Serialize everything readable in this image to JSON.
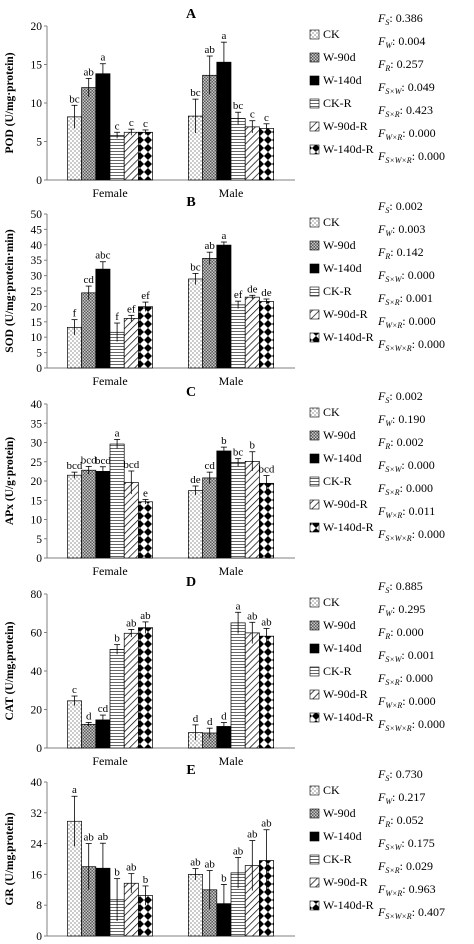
{
  "series_names": [
    "CK",
    "W-90d",
    "W-140d",
    "CK-R",
    "W-90d-R",
    "W-140d-R"
  ],
  "groups": [
    "Female",
    "Male"
  ],
  "patterns": [
    "dots",
    "checker",
    "black",
    "hstripe",
    "diag",
    "diamond"
  ],
  "colors": {
    "bar_edge": "#000000",
    "axis": "#808080",
    "text": "#000000"
  },
  "chart_data": [
    {
      "type": "bar",
      "title": "A",
      "ylabel": "POD (U/mg·protein)",
      "ylim": [
        0,
        20
      ],
      "yticks": [
        0,
        5,
        10,
        15,
        20
      ],
      "categories": [
        "Female",
        "Male"
      ],
      "series": [
        {
          "name": "CK",
          "values": [
            8.2,
            8.3
          ],
          "errors": [
            1.5,
            2.2
          ],
          "letters": [
            "bc",
            "bc"
          ]
        },
        {
          "name": "W-90d",
          "values": [
            12.0,
            13.6
          ],
          "errors": [
            1.2,
            2.5
          ],
          "letters": [
            "ab",
            "ab"
          ]
        },
        {
          "name": "W-140d",
          "values": [
            13.8,
            15.3
          ],
          "errors": [
            1.3,
            2.6
          ],
          "letters": [
            "a",
            "a"
          ]
        },
        {
          "name": "CK-R",
          "values": [
            5.8,
            8.0
          ],
          "errors": [
            0.4,
            0.8
          ],
          "letters": [
            "c",
            "bc"
          ]
        },
        {
          "name": "W-90d-R",
          "values": [
            6.2,
            6.9
          ],
          "errors": [
            0.4,
            0.8
          ],
          "letters": [
            "c",
            "c"
          ]
        },
        {
          "name": "W-140d-R",
          "values": [
            6.2,
            6.7
          ],
          "errors": [
            0.3,
            0.6
          ],
          "letters": [
            "c",
            "c"
          ]
        }
      ],
      "stats": [
        {
          "label": "S",
          "value": "0.386"
        },
        {
          "label": "W",
          "value": "0.004"
        },
        {
          "label": "R",
          "value": "0.257"
        },
        {
          "label": "S×W",
          "value": "0.049"
        },
        {
          "label": "S×R",
          "value": "0.423"
        },
        {
          "label": "W×R",
          "value": "0.000"
        },
        {
          "label": "S×W×R",
          "value": "0.000"
        }
      ]
    },
    {
      "type": "bar",
      "title": "B",
      "ylabel": "SOD (U/mg·protein·min)",
      "ylim": [
        0,
        50
      ],
      "yticks": [
        0,
        5,
        10,
        15,
        20,
        25,
        30,
        35,
        40,
        45,
        50
      ],
      "categories": [
        "Female",
        "Male"
      ],
      "series": [
        {
          "name": "CK",
          "values": [
            13.2,
            28.9
          ],
          "errors": [
            2.5,
            1.8
          ],
          "letters": [
            "f",
            "bc"
          ]
        },
        {
          "name": "W-90d",
          "values": [
            24.4,
            35.6
          ],
          "errors": [
            2.2,
            2.0
          ],
          "letters": [
            "cd",
            "ab"
          ]
        },
        {
          "name": "W-140d",
          "values": [
            32.1,
            39.9
          ],
          "errors": [
            2.4,
            1.0
          ],
          "letters": [
            "abc",
            "a"
          ]
        },
        {
          "name": "CK-R",
          "values": [
            11.6,
            20.5
          ],
          "errors": [
            3.0,
            1.2
          ],
          "letters": [
            "f",
            "ef"
          ]
        },
        {
          "name": "W-90d-R",
          "values": [
            16.1,
            23.0
          ],
          "errors": [
            1.0,
            0.6
          ],
          "letters": [
            "ef",
            "de"
          ]
        },
        {
          "name": "W-140d-R",
          "values": [
            19.9,
            21.6
          ],
          "errors": [
            1.5,
            0.8
          ],
          "letters": [
            "ef",
            "de"
          ]
        }
      ],
      "stats": [
        {
          "label": "S",
          "value": "0.002"
        },
        {
          "label": "W",
          "value": "0.003"
        },
        {
          "label": "R",
          "value": "0.142"
        },
        {
          "label": "S×W",
          "value": "0.000"
        },
        {
          "label": "S×R",
          "value": "0.001"
        },
        {
          "label": "W×R",
          "value": "0.000"
        },
        {
          "label": "S×W×R",
          "value": "0.000"
        }
      ]
    },
    {
      "type": "bar",
      "title": "C",
      "ylabel": "APx (U/g·protein)",
      "ylim": [
        0,
        40
      ],
      "yticks": [
        0,
        5,
        10,
        15,
        20,
        25,
        30,
        35,
        40
      ],
      "categories": [
        "Female",
        "Male"
      ],
      "series": [
        {
          "name": "CK",
          "values": [
            21.5,
            17.5
          ],
          "errors": [
            0.8,
            1.2
          ],
          "letters": [
            "bcd",
            "de"
          ]
        },
        {
          "name": "W-90d",
          "values": [
            22.8,
            20.8
          ],
          "errors": [
            1.0,
            1.5
          ],
          "letters": [
            "bcd",
            "cd"
          ]
        },
        {
          "name": "W-140d",
          "values": [
            22.5,
            27.8
          ],
          "errors": [
            1.2,
            1.0
          ],
          "letters": [
            "bcd",
            "b"
          ]
        },
        {
          "name": "CK-R",
          "values": [
            29.6,
            24.8
          ],
          "errors": [
            1.2,
            1.0
          ],
          "letters": [
            "a",
            "bc"
          ]
        },
        {
          "name": "W-90d-R",
          "values": [
            19.6,
            25.1
          ],
          "errors": [
            3.0,
            2.5
          ],
          "letters": [
            "bcd",
            "b"
          ]
        },
        {
          "name": "W-140d-R",
          "values": [
            14.6,
            19.4
          ],
          "errors": [
            0.6,
            2.0
          ],
          "letters": [
            "e",
            "bcd"
          ]
        }
      ],
      "stats": [
        {
          "label": "S",
          "value": "0.002"
        },
        {
          "label": "W",
          "value": "0.190"
        },
        {
          "label": "R",
          "value": "0.002"
        },
        {
          "label": "S×W",
          "value": "0.000"
        },
        {
          "label": "S×R",
          "value": "0.000"
        },
        {
          "label": "W×R",
          "value": "0.011"
        },
        {
          "label": "S×W×R",
          "value": "0.000"
        }
      ]
    },
    {
      "type": "bar",
      "title": "D",
      "ylabel": "CAT (U/mg.protein)",
      "ylim": [
        0,
        80
      ],
      "yticks": [
        0,
        20,
        40,
        60,
        80
      ],
      "categories": [
        "Female",
        "Male"
      ],
      "series": [
        {
          "name": "CK",
          "values": [
            24.5,
            8.0
          ],
          "errors": [
            2.5,
            4.0
          ],
          "letters": [
            "c",
            "d"
          ]
        },
        {
          "name": "W-90d",
          "values": [
            12.3,
            7.8
          ],
          "errors": [
            1.0,
            2.5
          ],
          "letters": [
            "d",
            "d"
          ]
        },
        {
          "name": "W-140d",
          "values": [
            14.6,
            11.2
          ],
          "errors": [
            2.5,
            2.0
          ],
          "letters": [
            "cd",
            "d"
          ]
        },
        {
          "name": "CK-R",
          "values": [
            51.2,
            65.0
          ],
          "errors": [
            2.5,
            5.5
          ],
          "letters": [
            "b",
            "a"
          ]
        },
        {
          "name": "W-90d-R",
          "values": [
            59.6,
            59.8
          ],
          "errors": [
            2.0,
            5.5
          ],
          "letters": [
            "ab",
            "ab"
          ]
        },
        {
          "name": "W-140d-R",
          "values": [
            62.5,
            58.1
          ],
          "errors": [
            3.0,
            4.0
          ],
          "letters": [
            "ab",
            "ab"
          ]
        }
      ],
      "stats": [
        {
          "label": "S",
          "value": "0.885"
        },
        {
          "label": "W",
          "value": "0.295"
        },
        {
          "label": "R",
          "value": "0.000"
        },
        {
          "label": "S×W",
          "value": "0.001"
        },
        {
          "label": "S×R",
          "value": "0.000"
        },
        {
          "label": "W×R",
          "value": "0.000"
        },
        {
          "label": "S×W×R",
          "value": "0.000"
        }
      ]
    },
    {
      "type": "bar",
      "title": "E",
      "ylabel": "GR (U/mg.protein)",
      "ylim": [
        0,
        40
      ],
      "yticks": [
        0,
        8,
        16,
        24,
        32,
        40
      ],
      "categories": [
        "Female",
        "Male"
      ],
      "series": [
        {
          "name": "CK",
          "values": [
            29.8,
            16.0
          ],
          "errors": [
            6.5,
            1.5
          ],
          "letters": [
            "a",
            "ab"
          ]
        },
        {
          "name": "W-90d",
          "values": [
            18.0,
            12.0
          ],
          "errors": [
            6.0,
            5.0
          ],
          "letters": [
            "ab",
            "ab"
          ]
        },
        {
          "name": "W-140d",
          "values": [
            17.6,
            8.4
          ],
          "errors": [
            6.5,
            5.0
          ],
          "letters": [
            "ab",
            "b"
          ]
        },
        {
          "name": "CK-R",
          "values": [
            9.4,
            16.4
          ],
          "errors": [
            5.5,
            4.0
          ],
          "letters": [
            "b",
            "ab"
          ]
        },
        {
          "name": "W-90d-R",
          "values": [
            13.7,
            18.3
          ],
          "errors": [
            2.5,
            6.5
          ],
          "letters": [
            "ab",
            "ab"
          ]
        },
        {
          "name": "W-140d-R",
          "values": [
            10.5,
            19.6
          ],
          "errors": [
            2.5,
            8.0
          ],
          "letters": [
            "b",
            "ab"
          ]
        }
      ],
      "stats": [
        {
          "label": "S",
          "value": "0.730"
        },
        {
          "label": "W",
          "value": "0.217"
        },
        {
          "label": "R",
          "value": "0.052"
        },
        {
          "label": "S×W",
          "value": "0.175"
        },
        {
          "label": "S×R",
          "value": "0.029"
        },
        {
          "label": "W×R",
          "value": "0.963"
        },
        {
          "label": "S×W×R",
          "value": "0.407"
        }
      ]
    }
  ]
}
